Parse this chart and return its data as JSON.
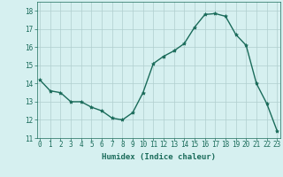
{
  "x": [
    0,
    1,
    2,
    3,
    4,
    5,
    6,
    7,
    8,
    9,
    10,
    11,
    12,
    13,
    14,
    15,
    16,
    17,
    18,
    19,
    20,
    21,
    22,
    23
  ],
  "y": [
    14.2,
    13.6,
    13.5,
    13.0,
    13.0,
    12.7,
    12.5,
    12.1,
    12.0,
    12.4,
    13.5,
    15.1,
    15.5,
    15.8,
    16.2,
    17.1,
    17.8,
    17.85,
    17.7,
    16.7,
    16.1,
    14.0,
    12.9,
    11.4
  ],
  "line_color": "#1a6b5a",
  "marker": "*",
  "marker_size": 3,
  "bg_color": "#d6f0f0",
  "grid_color": "#b0cece",
  "xlabel": "Humidex (Indice chaleur)",
  "ylabel_ticks": [
    11,
    12,
    13,
    14,
    15,
    16,
    17,
    18
  ],
  "xlabel_ticks": [
    0,
    1,
    2,
    3,
    4,
    5,
    6,
    7,
    8,
    9,
    10,
    11,
    12,
    13,
    14,
    15,
    16,
    17,
    18,
    19,
    20,
    21,
    22,
    23
  ],
  "xlim": [
    -0.3,
    23.3
  ],
  "ylim": [
    11,
    18.5
  ],
  "tick_color": "#1a6b5a",
  "label_fontsize": 6.5,
  "tick_fontsize": 5.5,
  "linewidth": 1.0
}
